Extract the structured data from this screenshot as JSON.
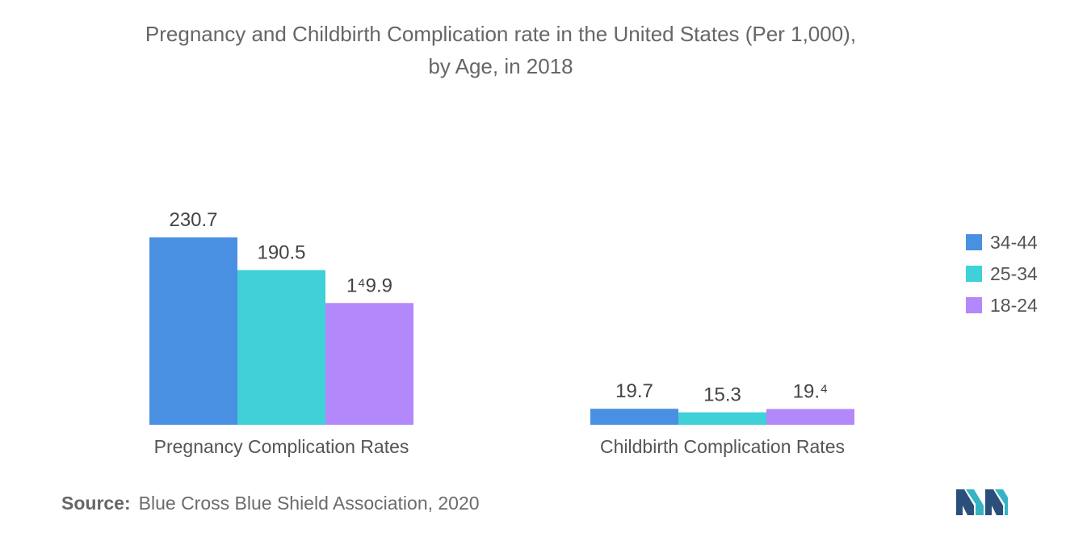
{
  "chart_data": {
    "type": "bar",
    "title": "Pregnancy and Childbirth Complication rate in the United States (Per 1,000),",
    "subtitle": "by Age, in 2018",
    "categories": [
      "Pregnancy Complication Rates",
      "Childbirth Complication Rates"
    ],
    "series": [
      {
        "name": "34-44",
        "values": [
          230.7,
          19.7
        ],
        "labels": [
          "230.7",
          "19.7"
        ],
        "color": "#4a90e2"
      },
      {
        "name": "25-34",
        "values": [
          190.5,
          15.3
        ],
        "labels": [
          "190.5",
          "15.3"
        ],
        "color": "#40d0d8"
      },
      {
        "name": "18-24",
        "values": [
          149.9,
          19.4
        ],
        "labels": [
          "1⁴9.9",
          "19.⁴"
        ],
        "color": "#b388fb"
      }
    ],
    "legend_position": "right",
    "grid": false,
    "ylim": [
      0,
      235
    ]
  },
  "source": {
    "label": "Source:",
    "text": "Blue Cross Blue Shield Association, 2020"
  },
  "logo_icon": "mordor-intelligence-logo-icon"
}
